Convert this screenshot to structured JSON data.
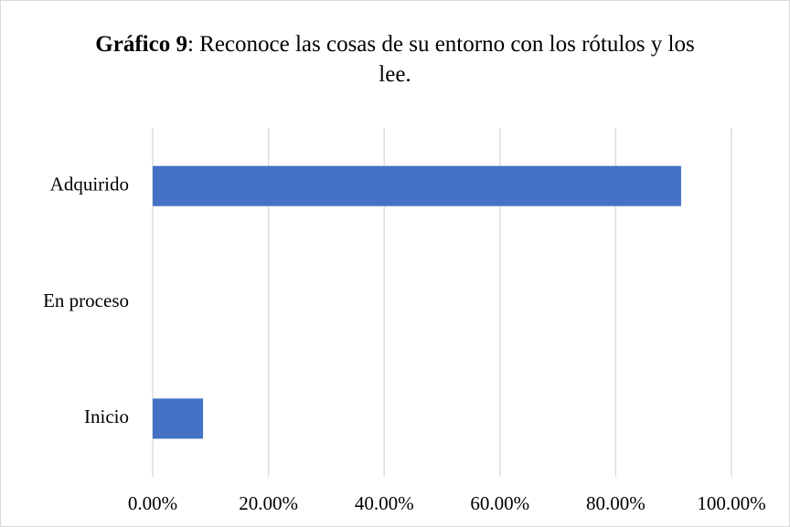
{
  "chart_data": {
    "type": "hbar",
    "title_bold": "Gráfico 9",
    "title": ": Reconoce las cosas de su entorno con los rótulos y los lee.",
    "categories": [
      "Adquirido",
      "En proceso",
      "Inicio"
    ],
    "values": [
      91.3,
      0,
      8.7
    ],
    "color": "#4472c4",
    "xlim": [
      0,
      100
    ],
    "xticks": [
      {
        "value": 0,
        "label": "0.00%"
      },
      {
        "value": 20,
        "label": "20.00%"
      },
      {
        "value": 40,
        "label": "40.00%"
      },
      {
        "value": 60,
        "label": "60.00%"
      },
      {
        "value": 80,
        "label": "80.00%"
      },
      {
        "value": 100,
        "label": "100.00%"
      }
    ],
    "grid": true
  }
}
